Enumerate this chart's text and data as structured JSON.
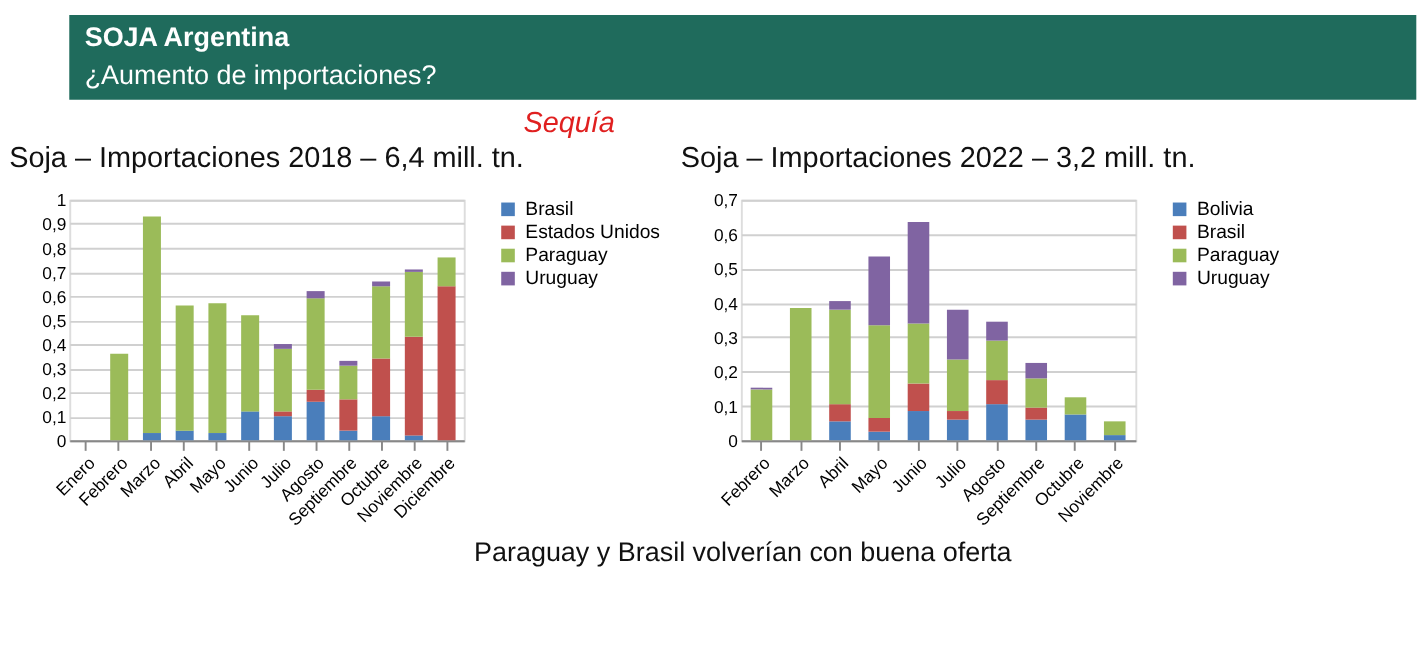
{
  "chart_data": [
    {
      "type": "bar",
      "stacked": true,
      "title": "Soja – Importaciones 2018 – 6,4 mill. tn.",
      "annotations": [
        "SOJA Argentina",
        "¿Aumento de importaciones?",
        "Sequía"
      ],
      "categories": [
        "Enero",
        "Febrero",
        "Marzo",
        "Abril",
        "Mayo",
        "Junio",
        "Julio",
        "Agosto",
        "Septiembre",
        "Octubre",
        "Noviembre",
        "Diciembre"
      ],
      "series": [
        {
          "name": "Brasil",
          "color": "#4a7ebb",
          "values": [
            0,
            0,
            0.03,
            0.04,
            0.03,
            0.12,
            0.1,
            0.16,
            0.04,
            0.1,
            0.02,
            0
          ]
        },
        {
          "name": "Estados Unidos",
          "color": "#c0504d",
          "values": [
            0,
            0,
            0,
            0,
            0,
            0,
            0.02,
            0.05,
            0.13,
            0.24,
            0.41,
            0.64
          ]
        },
        {
          "name": "Paraguay",
          "color": "#9bbb59",
          "values": [
            0,
            0.36,
            0.9,
            0.52,
            0.54,
            0.4,
            0.26,
            0.38,
            0.14,
            0.3,
            0.27,
            0.12
          ]
        },
        {
          "name": "Uruguay",
          "color": "#8064a2",
          "values": [
            0,
            0,
            0,
            0,
            0,
            0,
            0.02,
            0.03,
            0.02,
            0.02,
            0.01,
            0
          ]
        }
      ],
      "ylim": [
        0,
        1
      ],
      "yticks": [
        0,
        {
          "value": 0.1,
          "label": "0,1"
        },
        {
          "value": 0.2,
          "label": "0,2"
        },
        {
          "value": 0.3,
          "label": "0,3"
        },
        {
          "value": 0.4,
          "label": "0,4"
        },
        {
          "value": 0.5,
          "label": "0,5"
        },
        {
          "value": 0.6,
          "label": "0,6"
        },
        {
          "value": 0.7,
          "label": "0,7"
        },
        {
          "value": 0.8,
          "label": "0,8"
        },
        {
          "value": 0.9,
          "label": "0,9"
        },
        1
      ],
      "grid": "y",
      "legend": "right"
    },
    {
      "type": "bar",
      "stacked": true,
      "title": "Soja – Importaciones 2022 – 3,2 mill. tn.",
      "annotations": [
        "Paraguay y Brasil volverían con buena oferta"
      ],
      "categories": [
        "Febrero",
        "Marzo",
        "Abril",
        "Mayo",
        "Junio",
        "Julio",
        "Agosto",
        "Septiembre",
        "Octubre",
        "Noviembre"
      ],
      "series": [
        {
          "name": "Bolivia",
          "color": "#4a7ebb",
          "values": [
            0,
            0,
            0.055,
            0.025,
            0.085,
            0.06,
            0.105,
            0.06,
            0.075,
            0.015
          ]
        },
        {
          "name": "Brasil",
          "color": "#c0504d",
          "values": [
            0,
            0,
            0.05,
            0.04,
            0.08,
            0.025,
            0.07,
            0.035,
            0,
            0
          ]
        },
        {
          "name": "Paraguay",
          "color": "#9bbb59",
          "values": [
            0.148,
            0.385,
            0.275,
            0.27,
            0.175,
            0.15,
            0.115,
            0.085,
            0.05,
            0.04
          ]
        },
        {
          "name": "Uruguay",
          "color": "#8064a2",
          "values": [
            0.005,
            0,
            0.025,
            0.2,
            0.295,
            0.145,
            0.055,
            0.045,
            0,
            0
          ]
        }
      ],
      "ylim": [
        0,
        0.7
      ],
      "yticks": [
        0,
        {
          "value": 0.1,
          "label": "0,1"
        },
        {
          "value": 0.2,
          "label": "0,2"
        },
        {
          "value": 0.3,
          "label": "0,3"
        },
        {
          "value": 0.4,
          "label": "0,4"
        },
        {
          "value": 0.5,
          "label": "0,5"
        },
        {
          "value": 0.6,
          "label": "0,6"
        },
        {
          "value": 0.7,
          "label": "0,7"
        }
      ],
      "grid": "y",
      "legend": "right"
    }
  ]
}
